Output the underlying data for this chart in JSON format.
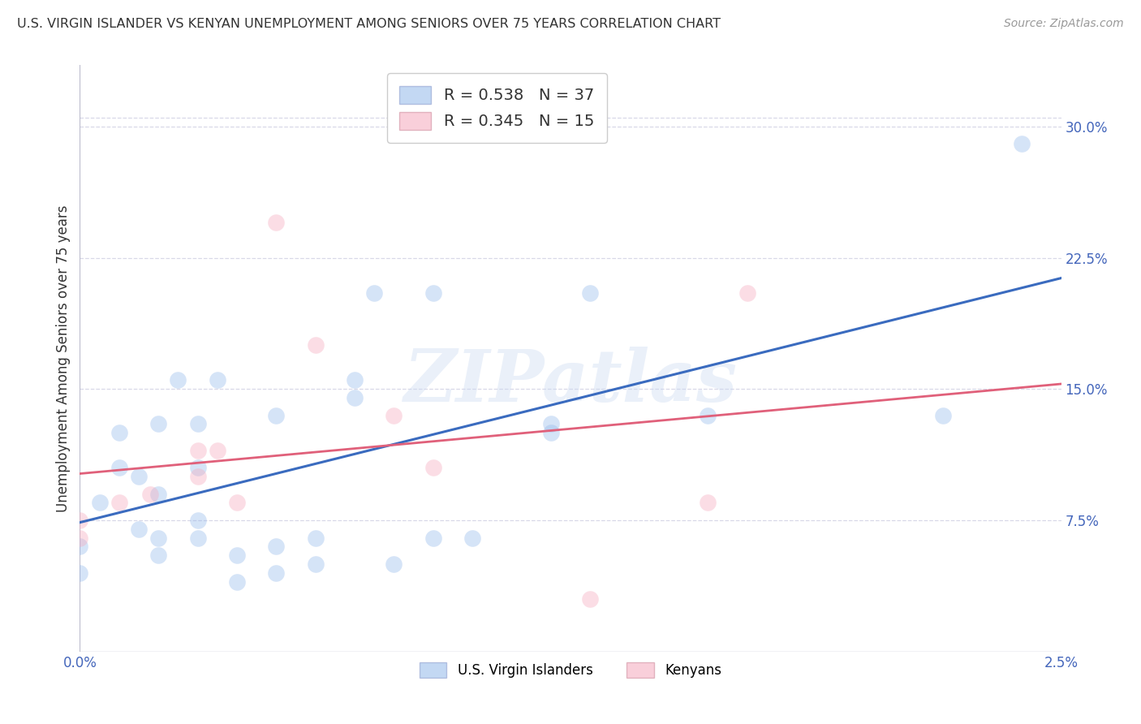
{
  "title": "U.S. VIRGIN ISLANDER VS KENYAN UNEMPLOYMENT AMONG SENIORS OVER 75 YEARS CORRELATION CHART",
  "source": "Source: ZipAtlas.com",
  "ylabel": "Unemployment Among Seniors over 75 years",
  "xlim": [
    0.0,
    0.025
  ],
  "ylim": [
    0.0,
    0.335
  ],
  "xticks": [
    0.0,
    0.005,
    0.01,
    0.015,
    0.02,
    0.025
  ],
  "xticklabels": [
    "0.0%",
    "",
    "",
    "",
    "",
    "2.5%"
  ],
  "yticks_right": [
    0.075,
    0.15,
    0.225,
    0.3
  ],
  "yticklabels_right": [
    "7.5%",
    "15.0%",
    "22.5%",
    "30.0%"
  ],
  "watermark": "ZIPatlas",
  "blue_color": "#92b8ea",
  "pink_color": "#f5a8bc",
  "blue_line_color": "#3a6bbf",
  "pink_line_color": "#e0607a",
  "background_color": "#ffffff",
  "grid_color": "#d8d8e8",
  "title_color": "#333333",
  "tick_color": "#4466bb",
  "legend_blue_label": "R = 0.538   N = 37",
  "legend_pink_label": "R = 0.345   N = 15",
  "legend_blue_series": "U.S. Virgin Islanders",
  "legend_pink_series": "Kenyans",
  "blue_scatter_x": [
    0.0,
    0.0,
    0.0005,
    0.001,
    0.001,
    0.0015,
    0.0015,
    0.002,
    0.002,
    0.002,
    0.002,
    0.0025,
    0.003,
    0.003,
    0.003,
    0.003,
    0.0035,
    0.004,
    0.004,
    0.005,
    0.005,
    0.005,
    0.006,
    0.006,
    0.007,
    0.007,
    0.0075,
    0.008,
    0.009,
    0.009,
    0.01,
    0.012,
    0.012,
    0.013,
    0.016,
    0.022,
    0.024
  ],
  "blue_scatter_y": [
    0.045,
    0.06,
    0.085,
    0.105,
    0.125,
    0.07,
    0.1,
    0.055,
    0.065,
    0.09,
    0.13,
    0.155,
    0.065,
    0.075,
    0.105,
    0.13,
    0.155,
    0.04,
    0.055,
    0.045,
    0.06,
    0.135,
    0.05,
    0.065,
    0.145,
    0.155,
    0.205,
    0.05,
    0.065,
    0.205,
    0.065,
    0.125,
    0.13,
    0.205,
    0.135,
    0.135,
    0.29
  ],
  "pink_scatter_x": [
    0.0,
    0.0,
    0.001,
    0.0018,
    0.003,
    0.003,
    0.0035,
    0.004,
    0.005,
    0.006,
    0.008,
    0.009,
    0.013,
    0.016,
    0.017
  ],
  "pink_scatter_y": [
    0.065,
    0.075,
    0.085,
    0.09,
    0.1,
    0.115,
    0.115,
    0.085,
    0.245,
    0.175,
    0.135,
    0.105,
    0.03,
    0.085,
    0.205
  ]
}
